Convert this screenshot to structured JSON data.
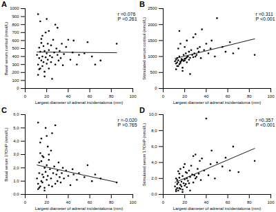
{
  "chart_data": [
    {
      "type": "scatter",
      "title": "A",
      "x_label": "Largest diameter of adrenal incidentaloma (mm)",
      "y_label": "Basal serum cortisol (nmol/L)",
      "annotations": [
        "r =0.076",
        "P =0.261"
      ],
      "color": "#000000",
      "marker": "circle",
      "xlim": [
        0,
        100
      ],
      "xticks": [
        0,
        20,
        40,
        60,
        80,
        100
      ],
      "ylim": [
        0,
        1000
      ],
      "yticks": [
        0,
        100,
        200,
        300,
        400,
        500,
        600,
        700,
        800,
        900,
        1000
      ],
      "x": [
        11,
        12,
        12,
        13,
        13,
        14,
        14,
        15,
        15,
        16,
        16,
        17,
        17,
        18,
        18,
        19,
        19,
        20,
        20,
        21,
        21,
        22,
        22,
        23,
        24,
        24,
        25,
        26,
        27,
        28,
        29,
        30,
        30,
        31,
        32,
        33,
        34,
        35,
        36,
        38,
        40,
        42,
        44,
        45,
        48,
        50,
        55,
        58,
        62,
        65,
        70,
        85,
        12,
        14,
        16,
        18,
        20,
        22,
        25,
        28,
        13,
        15
      ],
      "values": [
        420,
        930,
        300,
        380,
        510,
        250,
        460,
        350,
        620,
        400,
        280,
        530,
        330,
        470,
        210,
        390,
        700,
        440,
        310,
        560,
        360,
        480,
        250,
        410,
        540,
        330,
        390,
        610,
        450,
        300,
        500,
        420,
        760,
        350,
        470,
        380,
        560,
        290,
        430,
        520,
        610,
        360,
        450,
        600,
        300,
        420,
        440,
        580,
        400,
        300,
        350,
        560,
        170,
        840,
        660,
        150,
        870,
        720,
        120,
        800,
        240,
        570
      ]
    },
    {
      "type": "scatter",
      "title": "B",
      "x_label": "Largest diameter of adrenal incidentaloma (mm)",
      "y_label": "Stimulated serum cortisol (nmol/L)",
      "annotations": [
        "r =0.311",
        "P <0.001"
      ],
      "color": "#000000",
      "marker": "circle",
      "xlim": [
        0,
        100
      ],
      "xticks": [
        0,
        20,
        40,
        60,
        80,
        100
      ],
      "ylim": [
        0,
        2500
      ],
      "yticks": [
        0,
        500,
        1000,
        1500,
        2000,
        2500
      ],
      "x": [
        11,
        12,
        12,
        13,
        13,
        14,
        14,
        15,
        15,
        16,
        16,
        17,
        17,
        18,
        18,
        19,
        19,
        20,
        20,
        21,
        21,
        22,
        22,
        23,
        24,
        24,
        25,
        26,
        27,
        28,
        29,
        30,
        30,
        31,
        32,
        33,
        34,
        35,
        36,
        38,
        40,
        42,
        44,
        45,
        48,
        50,
        55,
        58,
        62,
        65,
        70,
        85,
        12,
        14,
        16,
        18,
        20,
        22,
        25,
        28,
        13,
        15
      ],
      "values": [
        850,
        900,
        780,
        820,
        950,
        700,
        880,
        760,
        1000,
        840,
        800,
        920,
        870,
        900,
        650,
        860,
        1050,
        930,
        880,
        1100,
        940,
        980,
        820,
        1000,
        1150,
        900,
        960,
        1200,
        1050,
        980,
        1100,
        1000,
        1700,
        1050,
        1250,
        1150,
        1300,
        950,
        1850,
        1200,
        1400,
        1100,
        1250,
        1500,
        1000,
        2200,
        1300,
        1150,
        1450,
        1100,
        1250,
        1050,
        600,
        1250,
        1400,
        550,
        1300,
        1500,
        450,
        1600,
        700,
        1800
      ]
    },
    {
      "type": "scatter",
      "title": "C",
      "x_label": "Largest diameter of adrenal incidentaloma (mm)",
      "y_label": "Basal serum 17OHP (nmol/L)",
      "annotations": [
        "r =-0.020",
        "P =0.765"
      ],
      "color": "#000000",
      "marker": "circle",
      "xlim": [
        0,
        100
      ],
      "xticks": [
        0,
        20,
        40,
        60,
        80,
        100
      ],
      "ylim": [
        0,
        6
      ],
      "yticks": [
        {
          "value": 0,
          "label": "0,0"
        },
        {
          "value": 1,
          "label": "1,0"
        },
        {
          "value": 2,
          "label": "2,0"
        },
        {
          "value": 3,
          "label": "3,0"
        },
        {
          "value": 4,
          "label": "4,0"
        },
        {
          "value": 5,
          "label": "5,0"
        },
        {
          "value": 6,
          "label": "6,0"
        }
      ],
      "x": [
        11,
        12,
        12,
        13,
        13,
        14,
        14,
        15,
        15,
        16,
        16,
        17,
        17,
        18,
        18,
        19,
        19,
        20,
        20,
        21,
        21,
        22,
        22,
        23,
        24,
        24,
        25,
        26,
        27,
        28,
        29,
        30,
        30,
        31,
        32,
        33,
        34,
        35,
        36,
        38,
        40,
        42,
        44,
        45,
        48,
        50,
        55,
        58,
        62,
        65,
        70,
        85,
        12,
        14,
        16,
        18,
        20,
        22,
        25,
        28,
        13,
        15
      ],
      "values": [
        1.2,
        5.4,
        0.8,
        1.6,
        2.4,
        0.6,
        3.1,
        1.0,
        4.2,
        1.5,
        0.9,
        2.8,
        1.3,
        2.0,
        0.5,
        1.7,
        5.0,
        2.2,
        1.1,
        3.6,
        1.4,
        2.6,
        0.7,
        1.9,
        3.3,
        1.2,
        4.6,
        1.6,
        2.1,
        0.8,
        1.5,
        1.8,
        1.0,
        2.4,
        1.3,
        0.9,
        1.6,
        2.0,
        1.2,
        1.8,
        1.4,
        0.7,
        1.9,
        1.5,
        1.1,
        1.6,
        1.3,
        2.2,
        1.0,
        1.5,
        1.2,
        0.9,
        0.4,
        3.9,
        2.9,
        0.3,
        4.4,
        3.0,
        0.6,
        5.2,
        0.5,
        2.5
      ]
    },
    {
      "type": "scatter",
      "title": "D",
      "x_label": "Largest diameter of adrenal incidentaloma (mm)",
      "y_label": "Stimulated serum 17OHP (nmol/L)",
      "annotations": [
        "r =0.357",
        "P <0.001"
      ],
      "color": "#000000",
      "marker": "circle",
      "xlim": [
        0,
        100
      ],
      "xticks": [
        0,
        20,
        40,
        60,
        80,
        100
      ],
      "ylim": [
        0,
        10
      ],
      "yticks": [
        {
          "value": 0,
          "label": "0,0"
        },
        {
          "value": 2,
          "label": "2,0"
        },
        {
          "value": 4,
          "label": "4,0"
        },
        {
          "value": 6,
          "label": "6,0"
        },
        {
          "value": 8,
          "label": "8,0"
        },
        {
          "value": 10,
          "label": "10,0"
        }
      ],
      "x": [
        11,
        12,
        12,
        13,
        13,
        14,
        14,
        15,
        15,
        16,
        16,
        17,
        17,
        18,
        18,
        19,
        19,
        20,
        20,
        21,
        21,
        22,
        22,
        23,
        24,
        24,
        25,
        26,
        27,
        28,
        29,
        30,
        30,
        31,
        32,
        33,
        34,
        35,
        36,
        38,
        40,
        42,
        44,
        45,
        48,
        50,
        55,
        58,
        62,
        65,
        70,
        85,
        12,
        14,
        16,
        18,
        20,
        22,
        25,
        28,
        13,
        15
      ],
      "values": [
        1.0,
        2.0,
        0.6,
        1.3,
        1.8,
        0.5,
        1.5,
        0.8,
        2.6,
        1.2,
        0.7,
        1.6,
        1.0,
        2.3,
        0.6,
        1.4,
        3.4,
        1.9,
        1.1,
        2.8,
        1.3,
        2.0,
        0.9,
        1.7,
        3.0,
        1.4,
        2.2,
        3.6,
        2.5,
        1.5,
        2.4,
        2.0,
        5.0,
        2.2,
        3.2,
        2.6,
        4.2,
        1.8,
        4.5,
        3.0,
        9.5,
        2.4,
        3.8,
        5.5,
        2.0,
        4.0,
        3.5,
        4.6,
        3.0,
        6.0,
        2.8,
        4.2,
        0.4,
        2.9,
        3.2,
        0.3,
        3.8,
        2.7,
        0.5,
        4.8,
        0.8,
        2.1
      ]
    }
  ]
}
